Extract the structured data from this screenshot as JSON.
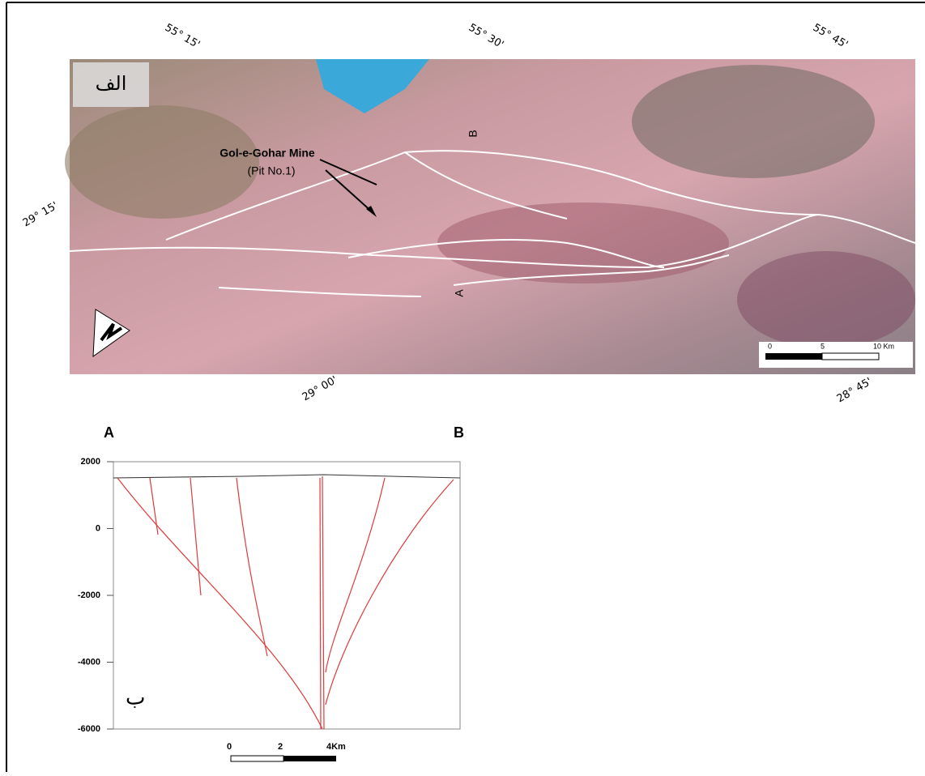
{
  "map": {
    "panel_label": "الف",
    "mine_name": "Gol-e-Gohar Mine",
    "mine_pit": "(Pit No.1)",
    "section_end_a": "A",
    "section_end_b": "B",
    "longitudes": [
      "55° 15'",
      "55° 30'",
      "55° 45'"
    ],
    "latitudes": [
      "29° 15'",
      "29° 00'",
      "28° 45'"
    ],
    "scale": {
      "labels": [
        "0",
        "5",
        "10 Km"
      ]
    }
  },
  "cross_section": {
    "end_a": "A",
    "end_b": "B",
    "panel_label": "ب",
    "yticks": [
      2000,
      0,
      -2000,
      -4000,
      -6000
    ],
    "scale": {
      "labels": [
        "0",
        "2",
        "4Km"
      ]
    }
  }
}
